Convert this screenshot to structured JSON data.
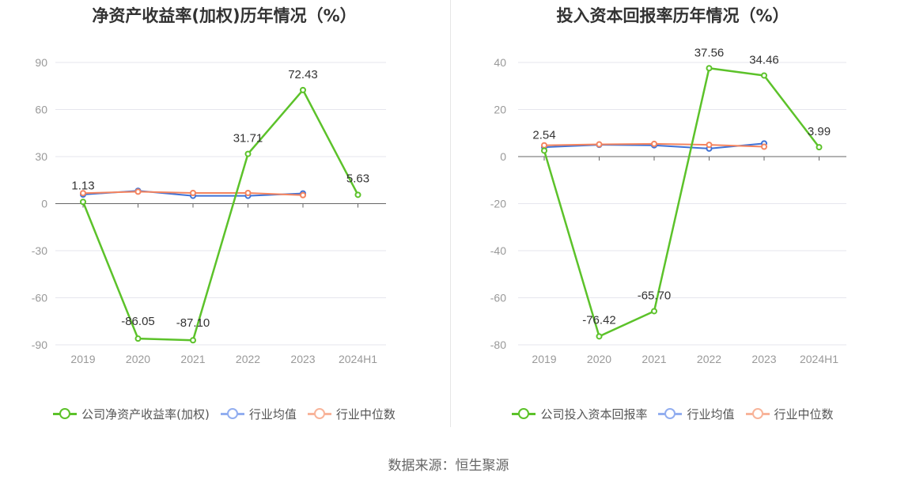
{
  "source_text": "数据来源：恒生聚源",
  "chart_data": [
    {
      "type": "line",
      "title": "净资产收益率(加权)历年情况（%）",
      "categories": [
        "2019",
        "2020",
        "2021",
        "2022",
        "2023",
        "2024H1"
      ],
      "yticks": [
        "90",
        "60",
        "30",
        "0",
        "-30",
        "-60",
        "-90"
      ],
      "ylim": [
        -90,
        90
      ],
      "grid": true,
      "legend_position": "bottom",
      "series": [
        {
          "name": "公司净资产收益率(加权)",
          "color": "#5cc22a",
          "values": [
            1.13,
            -86.05,
            -87.1,
            31.71,
            72.43,
            5.63
          ],
          "labels": [
            "1.13",
            "-86.05",
            "-87.10",
            "31.71",
            "72.43",
            "5.63"
          ]
        },
        {
          "name": "行业均值",
          "color": "#3f72d6",
          "legend_color": "#92aef0",
          "values": [
            5.8,
            8.2,
            5.0,
            5.0,
            6.5,
            null
          ]
        },
        {
          "name": "行业中位数",
          "color": "#f4845f",
          "legend_color": "#f8b49a",
          "values": [
            6.7,
            7.6,
            6.8,
            6.8,
            5.4,
            null
          ]
        }
      ]
    },
    {
      "type": "line",
      "title": "投入资本回报率历年情况（%）",
      "categories": [
        "2019",
        "2020",
        "2021",
        "2022",
        "2023",
        "2024H1"
      ],
      "yticks": [
        "40",
        "20",
        "0",
        "-20",
        "-40",
        "-60",
        "-80"
      ],
      "ylim": [
        -80,
        40
      ],
      "grid": true,
      "legend_position": "bottom",
      "series": [
        {
          "name": "公司投入资本回报率",
          "color": "#5cc22a",
          "values": [
            2.54,
            -76.42,
            -65.7,
            37.56,
            34.46,
            3.99
          ],
          "labels": [
            "2.54",
            "-76.42",
            "-65.70",
            "37.56",
            "34.46",
            "3.99"
          ]
        },
        {
          "name": "行业均值",
          "color": "#3f72d6",
          "legend_color": "#92aef0",
          "values": [
            4.0,
            5.0,
            4.8,
            3.4,
            5.6,
            null
          ]
        },
        {
          "name": "行业中位数",
          "color": "#f4845f",
          "legend_color": "#f8b49a",
          "values": [
            4.8,
            5.2,
            5.4,
            5.0,
            4.2,
            null
          ]
        }
      ]
    }
  ]
}
